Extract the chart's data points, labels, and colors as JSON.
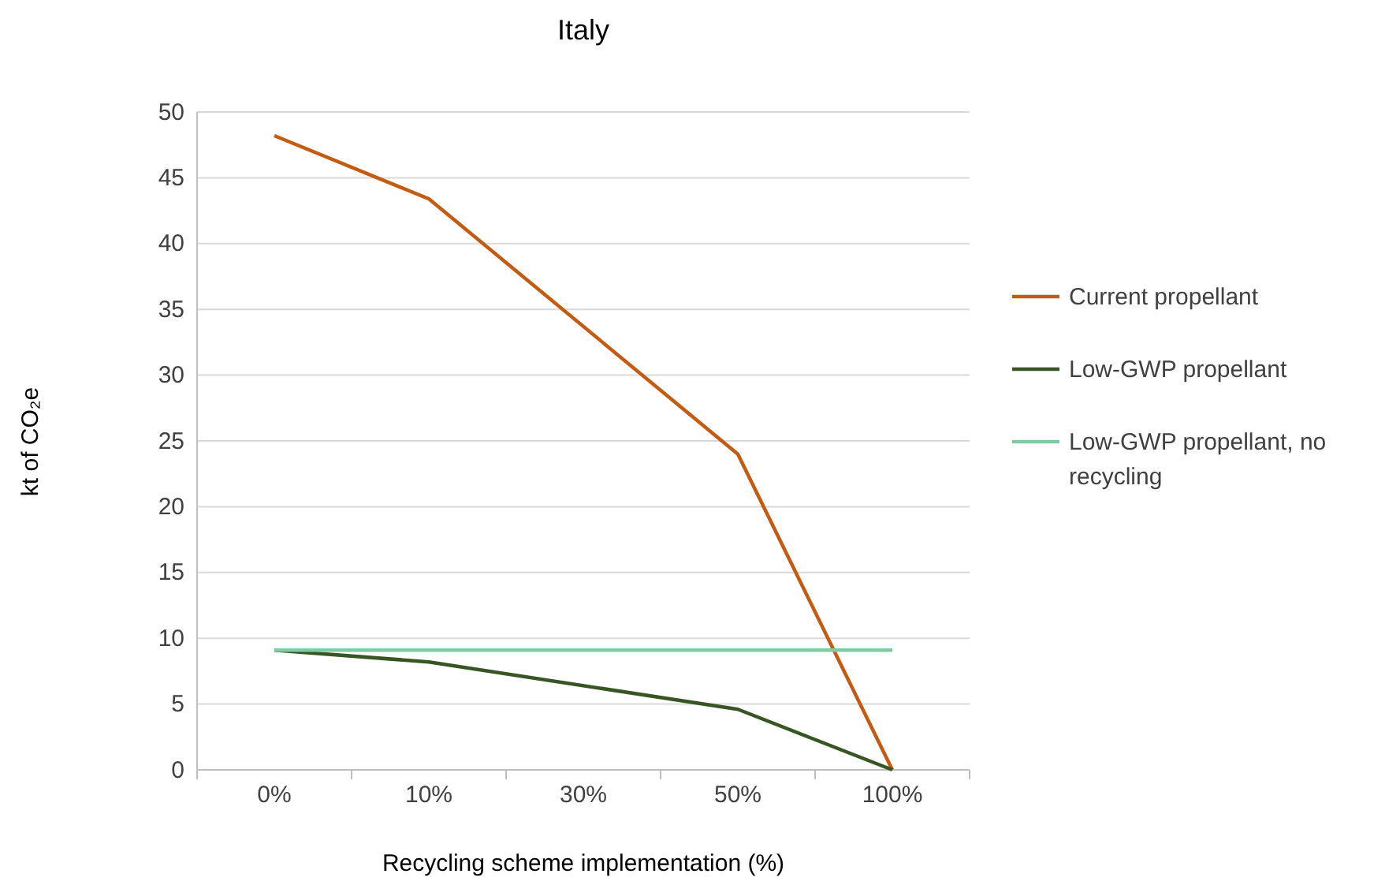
{
  "chart_data": {
    "type": "line",
    "title": "Italy",
    "xlabel": "Recycling scheme implementation (%)",
    "ylabel": "kt of CO₂e",
    "categories": [
      "0%",
      "10%",
      "30%",
      "50%",
      "100%"
    ],
    "series": [
      {
        "name": "Current propellant",
        "color": "#c55a11",
        "values": [
          48.2,
          43.4,
          null,
          24.0,
          0
        ]
      },
      {
        "name": "Low-GWP propellant",
        "color": "#375623",
        "values": [
          9.1,
          8.2,
          null,
          4.6,
          0
        ]
      },
      {
        "name": "Low-GWP propellant, no recycling",
        "color": "#7fcba4",
        "values": [
          9.1,
          9.1,
          9.1,
          9.1,
          9.1
        ]
      }
    ],
    "ylim": [
      0,
      50
    ],
    "yticks": [
      0,
      5,
      10,
      15,
      20,
      25,
      30,
      35,
      40,
      45,
      50
    ],
    "grid": "y",
    "legend": "right",
    "marker": "none",
    "line_style": "solid"
  }
}
